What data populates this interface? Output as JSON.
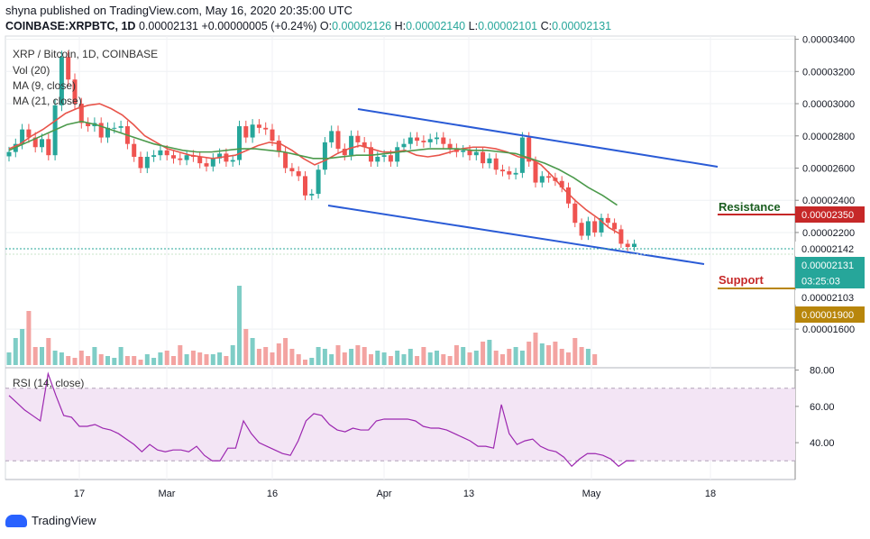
{
  "header": {
    "line1": "shyna published on TradingView.com, May 16, 2020 20:35:00 UTC",
    "symbol": "COINBASE:XRPBTC, 1D",
    "last": "0.00002131",
    "change": "+0.00000005 (+0.24%)",
    "o_label": "O:",
    "o": "0.00002126",
    "h_label": "H:",
    "h": "0.00002140",
    "l_label": "L:",
    "l": "0.00002101",
    "c_label": "C:",
    "c": "0.00002131"
  },
  "legend": {
    "title": "XRP / Bitcoin, 1D, COINBASE",
    "vol": "Vol (20)",
    "ma9": "MA (9, close)",
    "ma21": "MA (21, close)",
    "rsi": "RSI (14, close)"
  },
  "annotations": {
    "resistance": "Resistance",
    "support": "Support"
  },
  "price_badges": {
    "resistance": "0.00002350",
    "last_dotted": "0.00002142",
    "last": "0.00002131",
    "countdown": "03:25:03",
    "low": "0.00002103",
    "support": "0.00001900"
  },
  "brand": "TradingView",
  "colors": {
    "up": "#26a69a",
    "down": "#ef5350",
    "ma_fast": "#e8544a",
    "ma_slow": "#4c9a4c",
    "channel": "#2a5bd6",
    "resistance": "#c62828",
    "support": "#b8860b",
    "rsi": "#9c27b0",
    "rsi_band": "#f3e5f5"
  },
  "chart_data": {
    "type": "candlestick",
    "price_axis": {
      "ticks": [
        "0.00003400",
        "0.00003200",
        "0.00003000",
        "0.00002800",
        "0.00002600",
        "0.00002400",
        "0.00002200",
        "0.00001600"
      ],
      "range": [
        1.36e-05,
        3.42e-05
      ]
    },
    "rsi_axis": {
      "ticks": [
        "80.00",
        "60.00",
        "40.00"
      ],
      "range": [
        19.7,
        81.3
      ],
      "band": [
        30,
        70
      ]
    },
    "x_ticks": [
      "17",
      "Mar",
      "16",
      "Apr",
      "13",
      "May",
      "18"
    ],
    "ohlc_close": [
      2.7e-05,
      2.75e-05,
      2.84e-05,
      2.79e-05,
      2.73e-05,
      2.78e-05,
      2.68e-05,
      2.99e-05,
      3.29e-05,
      3.15e-05,
      3e-05,
      2.88e-05,
      2.86e-05,
      2.88e-05,
      2.79e-05,
      2.85e-05,
      2.85e-05,
      2.86e-05,
      2.75e-05,
      2.67e-05,
      2.6e-05,
      2.67e-05,
      2.68e-05,
      2.71e-05,
      2.68e-05,
      2.66e-05,
      2.65e-05,
      2.68e-05,
      2.67e-05,
      2.63e-05,
      2.61e-05,
      2.66e-05,
      2.69e-05,
      2.64e-05,
      2.65e-05,
      2.86e-05,
      2.79e-05,
      2.87e-05,
      2.85e-05,
      2.84e-05,
      2.77e-05,
      2.7e-05,
      2.6e-05,
      2.58e-05,
      2.55e-05,
      2.43e-05,
      2.44e-05,
      2.59e-05,
      2.76e-05,
      2.83e-05,
      2.72e-05,
      2.68e-05,
      2.8e-05,
      2.76e-05,
      2.73e-05,
      2.64e-05,
      2.67e-05,
      2.68e-05,
      2.64e-05,
      2.73e-05,
      2.75e-05,
      2.79e-05,
      2.77e-05,
      2.76e-05,
      2.78e-05,
      2.79e-05,
      2.75e-05,
      2.72e-05,
      2.7e-05,
      2.71e-05,
      2.68e-05,
      2.7e-05,
      2.63e-05,
      2.66e-05,
      2.59e-05,
      2.58e-05,
      2.56e-05,
      2.57e-05,
      2.79e-05,
      2.64e-05,
      2.51e-05,
      2.55e-05,
      2.54e-05,
      2.52e-05,
      2.48e-05,
      2.38e-05,
      2.26e-05,
      2.18e-05,
      2.27e-05,
      2.2e-05,
      2.29e-05,
      2.26e-05,
      2.22e-05,
      2.13e-05,
      2.11e-05,
      2.13e-05
    ],
    "ma_fast": [
      2.72e-05,
      2.75e-05,
      2.8e-05,
      2.84e-05,
      2.89e-05,
      2.94e-05,
      2.97e-05,
      2.99e-05,
      3e-05,
      2.97e-05,
      2.93e-05,
      2.87e-05,
      2.8e-05,
      2.76e-05,
      2.72e-05,
      2.7e-05,
      2.68e-05,
      2.67e-05,
      2.66e-05,
      2.67e-05,
      2.68e-05,
      2.71e-05,
      2.74e-05,
      2.76e-05,
      2.75e-05,
      2.71e-05,
      2.66e-05,
      2.62e-05,
      2.65e-05,
      2.69e-05,
      2.72e-05,
      2.74e-05,
      2.72e-05,
      2.7e-05,
      2.7e-05,
      2.71e-05,
      2.68e-05,
      2.67e-05,
      2.68e-05,
      2.7e-05,
      2.72e-05,
      2.73e-05,
      2.73e-05,
      2.72e-05,
      2.7e-05,
      2.67e-05,
      2.66e-05,
      2.62e-05,
      2.55e-05,
      2.47e-05,
      2.4e-05,
      2.34e-05,
      2.29e-05,
      2.23e-05,
      2.19e-05
    ],
    "ma_slow": [
      2.71e-05,
      2.75e-05,
      2.79e-05,
      2.83e-05,
      2.87e-05,
      2.89e-05,
      2.87e-05,
      2.84e-05,
      2.81e-05,
      2.78e-05,
      2.75e-05,
      2.73e-05,
      2.71e-05,
      2.7e-05,
      2.7e-05,
      2.71e-05,
      2.72e-05,
      2.72e-05,
      2.71e-05,
      2.7e-05,
      2.68e-05,
      2.66e-05,
      2.66e-05,
      2.67e-05,
      2.68e-05,
      2.68e-05,
      2.69e-05,
      2.7e-05,
      2.71e-05,
      2.72e-05,
      2.72e-05,
      2.72e-05,
      2.71e-05,
      2.71e-05,
      2.7e-05,
      2.69e-05,
      2.66e-05,
      2.63e-05,
      2.59e-05,
      2.54e-05,
      2.48e-05,
      2.43e-05,
      2.37e-05
    ],
    "volume": [
      14,
      30,
      40,
      60,
      20,
      20,
      30,
      16,
      14,
      10,
      8,
      16,
      10,
      20,
      12,
      10,
      8,
      20,
      10,
      10,
      6,
      12,
      8,
      14,
      16,
      10,
      22,
      12,
      16,
      14,
      12,
      12,
      14,
      10,
      22,
      88,
      40,
      30,
      18,
      20,
      14,
      24,
      30,
      18,
      12,
      6,
      8,
      20,
      18,
      12,
      22,
      14,
      18,
      22,
      20,
      12,
      16,
      14,
      10,
      16,
      12,
      18,
      10,
      20,
      14,
      16,
      12,
      10,
      22,
      20,
      14,
      16,
      26,
      28,
      16,
      12,
      18,
      20,
      16,
      26,
      36,
      24,
      22,
      26,
      18,
      14,
      30,
      20,
      18,
      12
    ],
    "rsi": [
      66,
      62,
      58,
      55,
      52,
      78,
      66,
      55,
      54,
      49,
      49,
      50,
      48,
      47,
      45,
      42,
      39,
      35,
      39,
      36,
      35,
      36,
      36,
      35,
      38,
      33,
      30,
      30,
      37,
      37,
      52,
      45,
      40,
      38,
      36,
      34,
      33,
      41,
      52,
      56,
      55,
      50,
      47,
      46,
      48,
      47,
      47,
      52,
      53,
      53,
      53,
      53,
      52,
      49,
      48,
      48,
      47,
      45,
      43,
      41,
      38,
      38,
      37,
      61,
      45,
      39,
      41,
      42,
      38,
      36,
      35,
      32,
      27,
      31,
      34,
      34,
      33,
      31,
      27,
      30,
      30
    ]
  }
}
